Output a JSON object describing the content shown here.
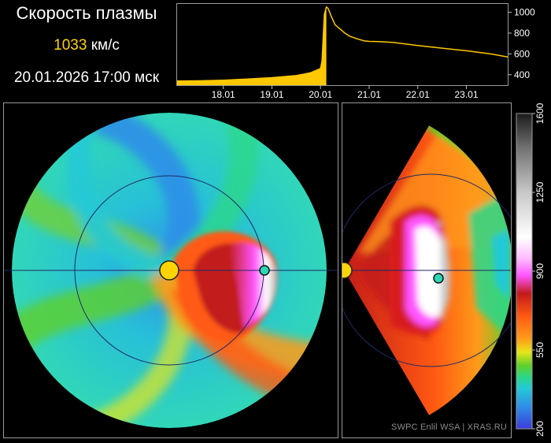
{
  "header": {
    "title": "Скорость плазмы",
    "speed_value": "1033",
    "speed_unit": "км/с",
    "datetime": "20.01.2026 17:00 мск"
  },
  "credit": "SWPC Enlil WSA  |  XRAS.RU",
  "colors": {
    "trace": "#ffc800",
    "frame": "#9a9a9a",
    "orbit": "#1e2a66"
  },
  "chart_data": [
    {
      "type": "area",
      "title": "",
      "xlabel": "",
      "ylabel": "",
      "x_ticks": [
        "18.01",
        "19.01",
        "20.01",
        "21.01",
        "22.01",
        "23.01"
      ],
      "x_tick_days": [
        18,
        19,
        20,
        21,
        22,
        23
      ],
      "xlim": [
        17.05,
        23.85
      ],
      "y_ticks": [
        400,
        600,
        800,
        1000
      ],
      "ylim": [
        300,
        1080
      ],
      "series": [
        {
          "x": [
            17.05,
            17.5,
            18.0,
            18.5,
            19.0,
            19.5,
            19.8,
            20.0,
            20.03,
            20.08,
            20.12,
            20.15,
            20.18,
            20.22,
            20.26,
            20.3,
            20.4,
            20.5,
            20.6,
            20.75,
            20.9,
            21.0,
            21.2,
            21.5,
            22.0,
            22.5,
            23.0,
            23.5,
            23.85
          ],
          "y": [
            340,
            342,
            348,
            358,
            372,
            392,
            420,
            460,
            530,
            980,
            1050,
            1040,
            1010,
            960,
            920,
            880,
            840,
            800,
            770,
            745,
            725,
            720,
            718,
            710,
            680,
            655,
            630,
            600,
            570
          ]
        }
      ]
    },
    {
      "type": "heatmap",
      "title": "",
      "colorbar": {
        "ticks": [
          200,
          550,
          900,
          1250,
          1600
        ],
        "range": [
          200,
          1600
        ],
        "stops": [
          {
            "v": 200,
            "c": "#3b3bd9"
          },
          {
            "v": 300,
            "c": "#2f8fe8"
          },
          {
            "v": 380,
            "c": "#24c9d6"
          },
          {
            "v": 430,
            "c": "#2bd78a"
          },
          {
            "v": 480,
            "c": "#5fcf2a"
          },
          {
            "v": 540,
            "c": "#e6e61a"
          },
          {
            "v": 600,
            "c": "#ff9a1a"
          },
          {
            "v": 700,
            "c": "#ff5a12"
          },
          {
            "v": 800,
            "c": "#c21a1a"
          },
          {
            "v": 880,
            "c": "#ff55ff"
          },
          {
            "v": 950,
            "c": "#ffb6ff"
          },
          {
            "v": 1050,
            "c": "#ffffff"
          },
          {
            "v": 1250,
            "c": "#c8c8c8"
          },
          {
            "v": 1450,
            "c": "#707070"
          },
          {
            "v": 1600,
            "c": "#1a1a1a"
          }
        ]
      }
    }
  ]
}
